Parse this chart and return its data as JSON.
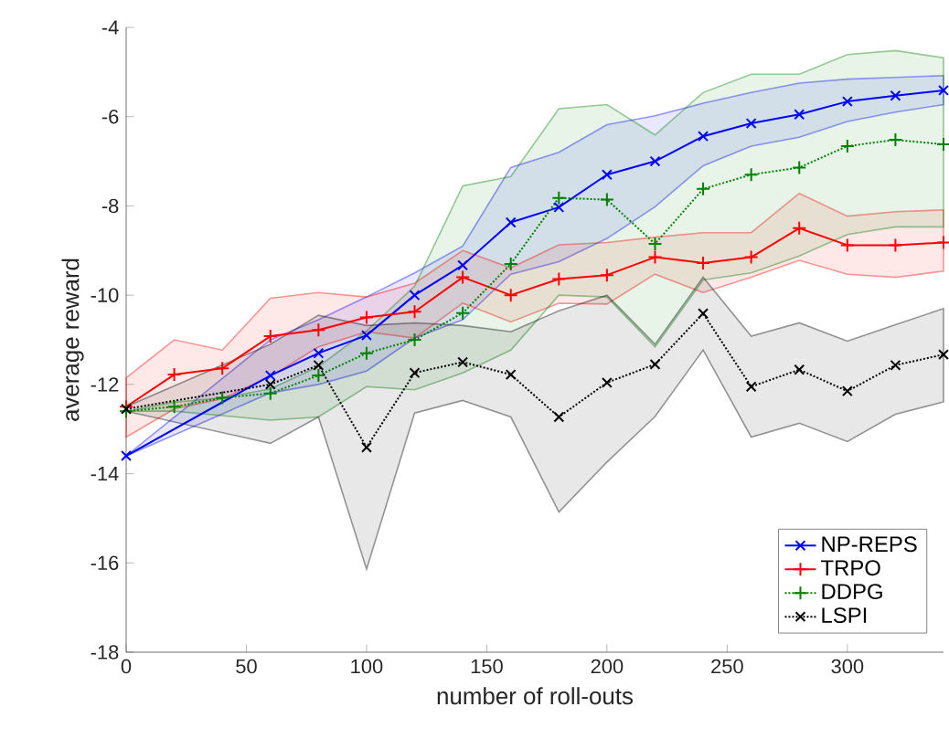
{
  "chart_data": {
    "type": "line",
    "xlabel": "number of roll-outs",
    "ylabel": "average reward",
    "xlim": [
      0,
      340
    ],
    "ylim": [
      -18,
      -4
    ],
    "xticks": [
      0,
      50,
      100,
      150,
      200,
      250,
      300
    ],
    "yticks": [
      -18,
      -16,
      -14,
      -12,
      -10,
      -8,
      -6,
      -4
    ],
    "grid": false,
    "legend": "bottom right",
    "series": [
      {
        "name": "NP-REPS",
        "color": "#0000ff",
        "marker": "cross",
        "line_style": "solid",
        "x": [
          0,
          60,
          80,
          100,
          120,
          140,
          160,
          180,
          200,
          220,
          240,
          260,
          280,
          300,
          320,
          340
        ],
        "values": [
          -13.6,
          -11.8,
          -11.3,
          -10.9,
          -10.0,
          -9.33,
          -8.37,
          -8.03,
          -7.3,
          -7.0,
          -6.44,
          -6.15,
          -5.95,
          -5.66,
          -5.53,
          -5.41
        ],
        "upper": [
          -13.6,
          -11.0,
          -10.55,
          -10.04,
          -9.5,
          -8.9,
          -7.14,
          -6.8,
          -6.18,
          -5.98,
          -5.7,
          -5.46,
          -5.25,
          -5.16,
          -5.12,
          -5.08
        ],
        "lower": [
          -13.6,
          -12.19,
          -12.0,
          -11.7,
          -10.96,
          -10.55,
          -9.53,
          -9.25,
          -8.73,
          -8.02,
          -7.1,
          -6.66,
          -6.46,
          -6.11,
          -5.9,
          -5.73
        ]
      },
      {
        "name": "TRPO",
        "color": "#ff0000",
        "marker": "plus",
        "line_style": "solid",
        "x": [
          0,
          20,
          40,
          60,
          80,
          100,
          120,
          140,
          160,
          180,
          200,
          220,
          240,
          260,
          280,
          300,
          320,
          340
        ],
        "values": [
          -12.5,
          -11.78,
          -11.64,
          -10.92,
          -10.78,
          -10.5,
          -10.37,
          -9.6,
          -10.0,
          -9.64,
          -9.55,
          -9.15,
          -9.28,
          -9.15,
          -8.5,
          -8.88,
          -8.88,
          -8.82
        ],
        "upper": [
          -11.85,
          -11.0,
          -11.23,
          -10.07,
          -9.94,
          -10.04,
          -9.73,
          -9.0,
          -9.39,
          -8.87,
          -8.82,
          -8.7,
          -8.6,
          -8.6,
          -7.72,
          -8.23,
          -8.13,
          -8.09
        ],
        "lower": [
          -13.18,
          -12.55,
          -12.32,
          -11.82,
          -11.16,
          -10.82,
          -10.96,
          -10.18,
          -10.6,
          -10.18,
          -10.2,
          -9.53,
          -9.94,
          -9.6,
          -9.22,
          -9.53,
          -9.6,
          -9.46
        ]
      },
      {
        "name": "DDPG",
        "color": "#008000",
        "marker": "plus",
        "line_style": "dotted",
        "x": [
          0,
          20,
          40,
          60,
          80,
          100,
          120,
          140,
          160,
          180,
          200,
          220,
          240,
          260,
          280,
          300,
          320,
          340
        ],
        "values": [
          -12.6,
          -12.5,
          -12.3,
          -12.2,
          -11.8,
          -11.3,
          -11.0,
          -10.4,
          -9.3,
          -7.82,
          -7.86,
          -8.85,
          -7.62,
          -7.3,
          -7.14,
          -6.66,
          -6.52,
          -6.62
        ],
        "upper": [
          -12.6,
          -12.4,
          -12.3,
          -12.1,
          -11.6,
          -10.8,
          -9.8,
          -7.55,
          -7.34,
          -5.82,
          -5.73,
          -6.41,
          -5.46,
          -5.05,
          -5.05,
          -4.61,
          -4.52,
          -4.68
        ],
        "lower": [
          -12.6,
          -12.6,
          -12.7,
          -12.8,
          -12.73,
          -12.05,
          -12.12,
          -11.74,
          -11.23,
          -10.0,
          -10.04,
          -11.16,
          -9.66,
          -9.5,
          -9.12,
          -8.64,
          -8.47,
          -8.47
        ]
      },
      {
        "name": "LSPI",
        "color": "#000000",
        "marker": "cross",
        "line_style": "dotted",
        "x": [
          0,
          60,
          80,
          100,
          120,
          140,
          160,
          180,
          200,
          220,
          240,
          260,
          280,
          300,
          320,
          340
        ],
        "values": [
          -12.55,
          -12.0,
          -11.57,
          -13.41,
          -11.74,
          -11.5,
          -11.78,
          -12.73,
          -11.96,
          -11.55,
          -10.41,
          -12.05,
          -11.67,
          -12.15,
          -11.57,
          -11.33
        ],
        "upper": [
          -12.5,
          -11.1,
          -10.45,
          -10.68,
          -10.62,
          -10.68,
          -10.82,
          -10.35,
          -10.0,
          -11.1,
          -9.6,
          -10.92,
          -10.62,
          -11.03,
          -10.66,
          -10.3
        ],
        "lower": [
          -12.6,
          -13.32,
          -12.73,
          -16.14,
          -12.64,
          -12.36,
          -12.73,
          -14.86,
          -13.74,
          -12.72,
          -11.23,
          -13.18,
          -12.87,
          -13.28,
          -12.67,
          -12.39
        ]
      }
    ]
  }
}
